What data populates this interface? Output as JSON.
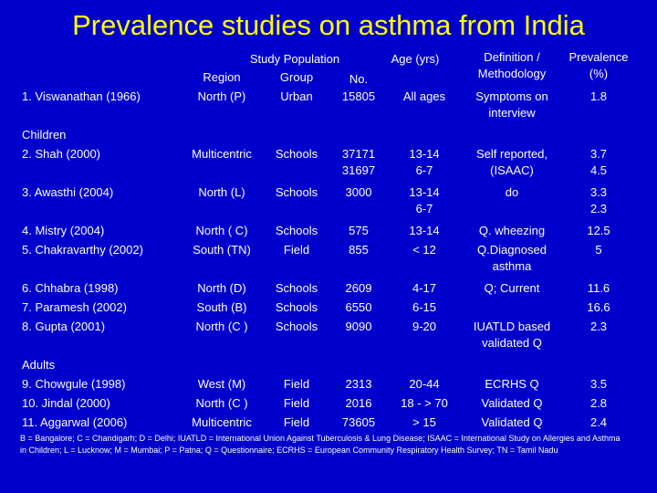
{
  "title": "Prevalence studies on asthma from India",
  "headers": {
    "study_population": "Study Population",
    "region": "Region",
    "group": "Group",
    "no": "No.",
    "age": "Age (yrs)",
    "definition": [
      "Definition /",
      "Methodology"
    ],
    "prevalence": [
      "Prevalence",
      "(%)"
    ]
  },
  "sections": {
    "children": "Children",
    "adults": "Adults"
  },
  "rows": [
    {
      "study": "1.  Viswanathan (1966)",
      "region": "North (P)",
      "group": "Urban",
      "no": [
        "15805"
      ],
      "age": [
        "All ages"
      ],
      "definition": [
        "Symptoms on",
        "interview"
      ],
      "prevalence": [
        "1.8"
      ]
    },
    {
      "study": "2.  Shah (2000)",
      "region": "Multicentric",
      "group": "Schools",
      "no": [
        "37171",
        "31697"
      ],
      "age": [
        "13-14",
        "6-7"
      ],
      "definition": [
        "Self reported,",
        "(ISAAC)"
      ],
      "prevalence": [
        "3.7",
        "4.5"
      ]
    },
    {
      "study": "3.  Awasthi (2004)",
      "region": "North (L)",
      "group": "Schools",
      "no": [
        "3000"
      ],
      "age": [
        "13-14",
        "6-7"
      ],
      "definition": [
        "do"
      ],
      "prevalence": [
        "3.3",
        "2.3"
      ]
    },
    {
      "study": "4.  Mistry (2004)",
      "region": "North ( C)",
      "group": "Schools",
      "no": [
        "575"
      ],
      "age": [
        "13-14"
      ],
      "definition": [
        "Q. wheezing"
      ],
      "prevalence": [
        "12.5"
      ]
    },
    {
      "study": "5.  Chakravarthy (2002)",
      "region": "South (TN)",
      "group": "Field",
      "no": [
        "855"
      ],
      "age": [
        "< 12"
      ],
      "definition": [
        "Q.Diagnosed",
        "asthma"
      ],
      "prevalence": [
        "5"
      ]
    },
    {
      "study": "6.  Chhabra (1998)",
      "region": "North (D)",
      "group": "Schools",
      "no": [
        "2609"
      ],
      "age": [
        "4-17"
      ],
      "definition": [
        "Q; Current"
      ],
      "prevalence": [
        "11.6"
      ]
    },
    {
      "study": "7.  Paramesh (2002)",
      "region": "South (B)",
      "group": "Schools",
      "no": [
        "6550"
      ],
      "age": [
        "6-15"
      ],
      "definition": [],
      "prevalence": [
        "16.6"
      ]
    },
    {
      "study": "8.  Gupta (2001)",
      "region": "North (C )",
      "group": "Schools",
      "no": [
        "9090"
      ],
      "age": [
        "9-20"
      ],
      "definition": [
        "IUATLD based",
        "validated Q"
      ],
      "prevalence": [
        "2.3"
      ]
    },
    {
      "study": "9.  Chowgule (1998)",
      "region": "West (M)",
      "group": "Field",
      "no": [
        "2313"
      ],
      "age": [
        "20-44"
      ],
      "definition": [
        "ECRHS Q"
      ],
      "prevalence": [
        "3.5"
      ]
    },
    {
      "study": "10. Jindal (2000)",
      "region": "North (C )",
      "group": "Field",
      "no": [
        "2016"
      ],
      "age": [
        "18 - > 70"
      ],
      "definition": [
        "Validated Q"
      ],
      "prevalence": [
        "2.8"
      ]
    },
    {
      "study": "11. Aggarwal (2006)",
      "region": "Multicentric",
      "group": "Field",
      "no": [
        "73605"
      ],
      "age": [
        "> 15"
      ],
      "definition": [
        "Validated Q"
      ],
      "prevalence": [
        "2.4"
      ]
    }
  ],
  "footnote": "B = Bangalore; C = Chandigarh; D = Delhi; IUATLD = International Union Against Tuberculosis & Lung Disease; ISAAC = International Study on Allergies and Asthma in Children; L = Lucknow; M = Mumbai; P = Patna; Q = Questionnaire; ECRHS = European Community Respiratory Health Survey; TN = Tamil Nadu",
  "colors": {
    "background": "#0000cc",
    "title": "#ffff00",
    "text": "#ffffff"
  }
}
